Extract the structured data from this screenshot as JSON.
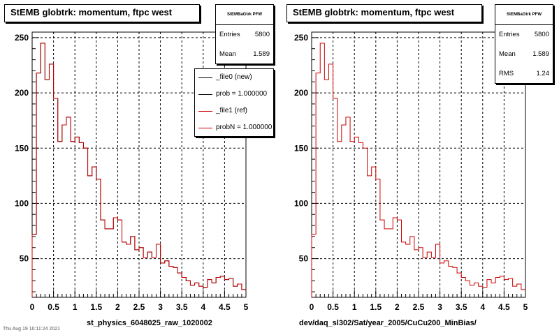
{
  "colors": {
    "new": "#000000",
    "ref": "#cc0000",
    "grid": "#000000"
  },
  "left_pad": {
    "title": "StEMB globtrk: momentum, ftpc west",
    "stats": {
      "name": "StEMBaGtrk PFW",
      "entries_label": "Entries",
      "entries_value": "5800",
      "mean_label": "Mean",
      "mean_value": "1.589"
    },
    "legend": [
      "_file0 (new)",
      "prob = 1.000000",
      "_file1 (ref)",
      "probN = 1.000000"
    ],
    "x_title": "st_physics_6048025_raw_1020002",
    "footer": "Thu Aug 19 10:11:24 2021"
  },
  "right_pad": {
    "title": "StEMB globtrk: momentum, ftpc west",
    "stats": {
      "name": "StEMBaGtrk PFW",
      "entries_label": "Entries",
      "entries_value": "5800",
      "mean_label": "Mean",
      "mean_value": "1.589",
      "rms_label": "RMS",
      "rms_value": "1.24"
    },
    "x_title": "dev/daq_sl302/Sat/year_2005/CuCu200_MinBias/"
  },
  "chart_data": [
    {
      "type": "line",
      "title": "StEMB globtrk: momentum, ftpc west",
      "xlabel": "st_physics_6048025_raw_1020002",
      "ylabel": "",
      "xlim": [
        0,
        5
      ],
      "ylim": [
        15,
        255
      ],
      "x_ticks": [
        "0",
        "0.5",
        "1",
        "1.5",
        "2",
        "2.5",
        "3",
        "3.5",
        "4",
        "4.5",
        "5"
      ],
      "y_ticks": [
        "50",
        "100",
        "150",
        "200",
        "250"
      ],
      "grid": true,
      "bin_width": 0.1,
      "x_bin_edges": [
        0,
        0.1,
        0.2,
        0.3,
        0.4,
        0.5,
        0.6,
        0.7,
        0.8,
        0.9,
        1.0,
        1.1,
        1.2,
        1.3,
        1.4,
        1.5,
        1.6,
        1.7,
        1.8,
        1.9,
        2.0,
        2.1,
        2.2,
        2.3,
        2.4,
        2.5,
        2.6,
        2.7,
        2.8,
        2.9,
        3.0,
        3.1,
        3.2,
        3.3,
        3.4,
        3.5,
        3.6,
        3.7,
        3.8,
        3.9,
        4.0,
        4.1,
        4.2,
        4.3,
        4.4,
        4.5,
        4.6,
        4.7,
        4.8,
        4.9,
        5.0
      ],
      "series": [
        {
          "name": "_file0 (new)",
          "values": [
            72,
            218,
            245,
            212,
            226,
            195,
            156,
            171,
            178,
            156,
            160,
            155,
            150,
            125,
            133,
            122,
            85,
            77,
            77,
            87,
            85,
            65,
            63,
            70,
            58,
            60,
            51,
            56,
            51,
            63,
            46,
            48,
            43,
            42,
            37,
            33,
            30,
            26,
            28,
            25,
            24,
            31,
            28,
            33,
            34,
            31,
            32,
            25,
            27,
            22
          ]
        },
        {
          "name": "_file1 (ref)",
          "values": [
            72,
            218,
            245,
            212,
            226,
            195,
            156,
            171,
            178,
            156,
            160,
            155,
            150,
            125,
            133,
            122,
            85,
            77,
            77,
            87,
            85,
            65,
            63,
            70,
            58,
            60,
            51,
            56,
            51,
            63,
            46,
            48,
            43,
            42,
            37,
            33,
            30,
            26,
            28,
            25,
            24,
            31,
            28,
            33,
            34,
            31,
            32,
            25,
            27,
            22
          ]
        }
      ]
    },
    {
      "type": "line",
      "title": "StEMB globtrk: momentum, ftpc west",
      "xlabel": "dev/daq_sl302/Sat/year_2005/CuCu200_MinBias/",
      "ylabel": "",
      "xlim": [
        0,
        5
      ],
      "ylim": [
        15,
        255
      ],
      "x_ticks": [
        "0",
        "0.5",
        "1",
        "1.5",
        "2",
        "2.5",
        "3",
        "3.5",
        "4",
        "4.5",
        "5"
      ],
      "y_ticks": [
        "50",
        "100",
        "150",
        "200",
        "250"
      ],
      "grid": true,
      "bin_width": 0.1,
      "series": [
        {
          "values": [
            72,
            218,
            245,
            212,
            226,
            195,
            156,
            171,
            178,
            156,
            160,
            155,
            150,
            125,
            133,
            122,
            85,
            77,
            77,
            87,
            85,
            65,
            63,
            70,
            58,
            60,
            51,
            56,
            51,
            63,
            46,
            48,
            43,
            42,
            37,
            33,
            30,
            26,
            28,
            25,
            24,
            31,
            28,
            33,
            34,
            31,
            32,
            25,
            27,
            22
          ]
        }
      ]
    }
  ]
}
